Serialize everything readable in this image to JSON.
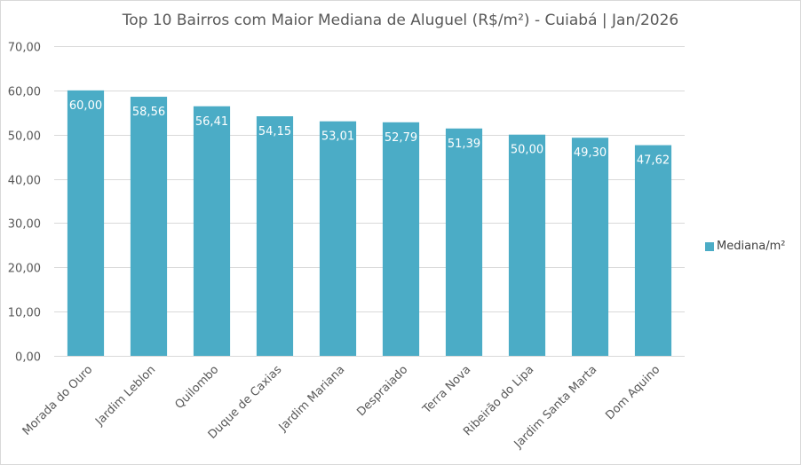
{
  "chart_data": {
    "type": "bar",
    "title": "Top 10 Bairros com Maior Mediana de Aluguel (R$/m²) - Cuiabá | Jan/2026",
    "categories": [
      "Morada do Ouro",
      "Jardim Leblon",
      "Quilombo",
      "Duque de Caxias",
      "Jardim Mariana",
      "Despraiado",
      "Terra Nova",
      "Ribeirão do Lipa",
      "Jardim Santa Marta",
      "Dom Aquino"
    ],
    "series": [
      {
        "name": "Mediana/m²",
        "values": [
          60.0,
          58.56,
          56.41,
          54.15,
          53.01,
          52.79,
          51.39,
          50.0,
          49.3,
          47.62
        ],
        "labels": [
          "60,00",
          "58,56",
          "56,41",
          "54,15",
          "53,01",
          "52,79",
          "51,39",
          "50,00",
          "49,30",
          "47,62"
        ]
      }
    ],
    "ylim": [
      0,
      70
    ],
    "yticks": [
      0,
      10,
      20,
      30,
      40,
      50,
      60,
      70
    ],
    "ytick_labels": [
      "0,00",
      "10,00",
      "20,00",
      "30,00",
      "40,00",
      "50,00",
      "60,00",
      "70,00"
    ],
    "xlabel": "",
    "ylabel": "",
    "grid": true,
    "legend_position": "right",
    "colors": {
      "bar": "#4bacc6",
      "grid": "#d9d9d9",
      "axis_text": "#595959",
      "data_label": "#ffffff"
    }
  }
}
